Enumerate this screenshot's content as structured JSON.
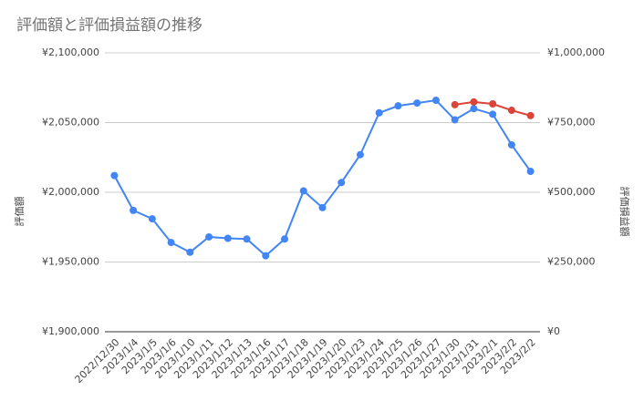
{
  "chart_data": {
    "type": "line",
    "title": "評価額と評価損益額の推移",
    "y_label": "評価額",
    "y2_label": "評価損益額",
    "categories": [
      "2022/12/30",
      "2023/1/4",
      "2023/1/5",
      "2023/1/6",
      "2023/1/10",
      "2023/1/11",
      "2023/1/12",
      "2023/1/13",
      "2023/1/16",
      "2023/1/17",
      "2023/1/18",
      "2023/1/19",
      "2023/1/20",
      "2023/1/23",
      "2023/1/24",
      "2023/1/25",
      "2023/1/26",
      "2023/1/27",
      "2023/1/30",
      "2023/1/31",
      "2023/2/1",
      "2023/2/2",
      "2023/2/2"
    ],
    "series": [
      {
        "name": "評価額",
        "color": "#4285f4",
        "values": [
          2012000,
          1987000,
          1981000,
          1964000,
          1957000,
          1968000,
          1967000,
          1966500,
          1954500,
          1966500,
          2001000,
          1989000,
          2007000,
          2027000,
          2057000,
          2062000,
          2064000,
          2066000,
          2052000,
          2060000,
          2056000,
          2034000,
          2015000
        ]
      },
      {
        "name": "評価損益額",
        "color": "#db4437",
        "axis": "y2",
        "values": [
          null,
          null,
          null,
          null,
          null,
          null,
          null,
          null,
          null,
          null,
          null,
          null,
          null,
          null,
          null,
          null,
          null,
          null,
          814000,
          824000,
          817000,
          794000,
          775000
        ]
      }
    ],
    "ylim": [
      1900000,
      2100000
    ],
    "yticks": [
      {
        "value": 1900000,
        "label": "¥1,900,000"
      },
      {
        "value": 1950000,
        "label": "¥1,950,000"
      },
      {
        "value": 2000000,
        "label": "¥2,000,000"
      },
      {
        "value": 2050000,
        "label": "¥2,050,000"
      },
      {
        "value": 2100000,
        "label": "¥2,100,000"
      }
    ],
    "y2lim": [
      0,
      1000000
    ],
    "y2ticks": [
      {
        "value": 0,
        "label": "¥0"
      },
      {
        "value": 250000,
        "label": "¥250,000"
      },
      {
        "value": 500000,
        "label": "¥500,000"
      },
      {
        "value": 750000,
        "label": "¥750,000"
      },
      {
        "value": 1000000,
        "label": "¥1,000,000"
      }
    ],
    "grid": true
  }
}
